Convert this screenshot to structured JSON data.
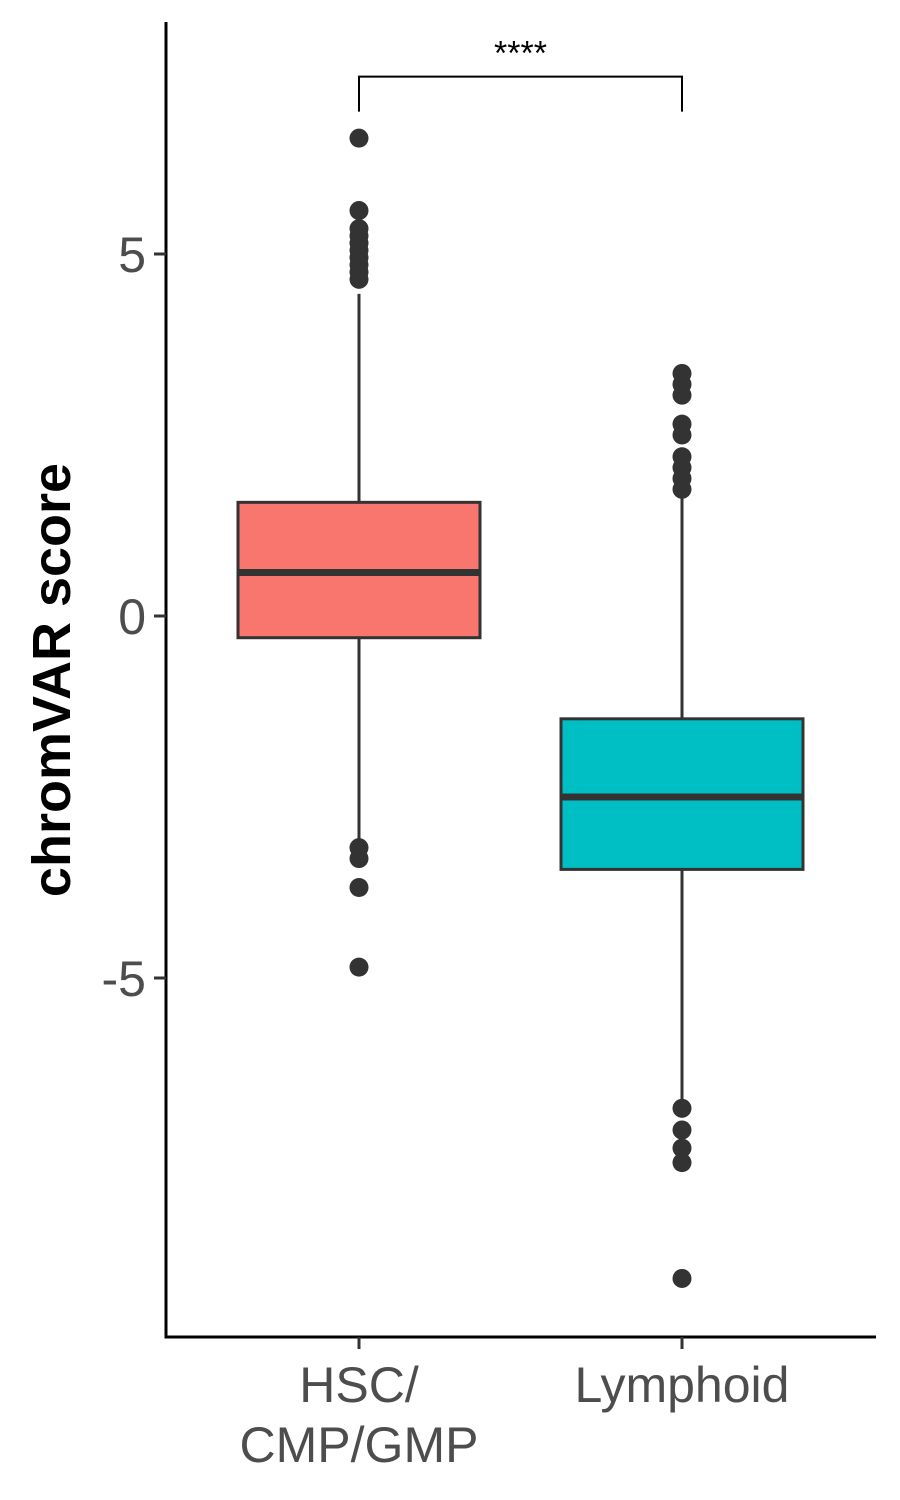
{
  "chart_data": {
    "type": "box",
    "title": "",
    "xlabel": "",
    "ylabel": "chromVAR score",
    "ylim": [
      -9.9,
      8.3
    ],
    "y_ticks": [
      "5",
      "0",
      "-5"
    ],
    "y_tick_values": [
      5,
      0,
      -5
    ],
    "grid": false,
    "legend": "none",
    "categories": [
      {
        "label_lines": [
          "HSC/",
          "CMP/GMP"
        ]
      },
      {
        "label_lines": [
          "Lymphoid"
        ]
      }
    ],
    "boxes": [
      {
        "color": "#F8766D",
        "q1": -0.3,
        "median": 0.6,
        "q3": 1.57,
        "whisker_low": -3.2,
        "whisker_high": 4.45,
        "outliers": [
          6.6,
          5.6,
          5.35,
          5.25,
          5.15,
          5.05,
          4.95,
          4.85,
          4.75,
          4.65,
          -3.2,
          -3.35,
          -3.75,
          -4.85
        ]
      },
      {
        "color": "#00BFC4",
        "q1": -3.5,
        "median": -2.5,
        "q3": -1.42,
        "whisker_low": -6.8,
        "whisker_high": 1.7,
        "outliers": [
          3.35,
          3.2,
          3.05,
          2.65,
          2.5,
          2.2,
          2.05,
          1.9,
          1.75,
          -6.8,
          -7.1,
          -7.35,
          -7.55,
          -9.15
        ]
      }
    ],
    "comparison": {
      "from": 0,
      "to": 1,
      "label": "****",
      "y": 7.45
    }
  }
}
